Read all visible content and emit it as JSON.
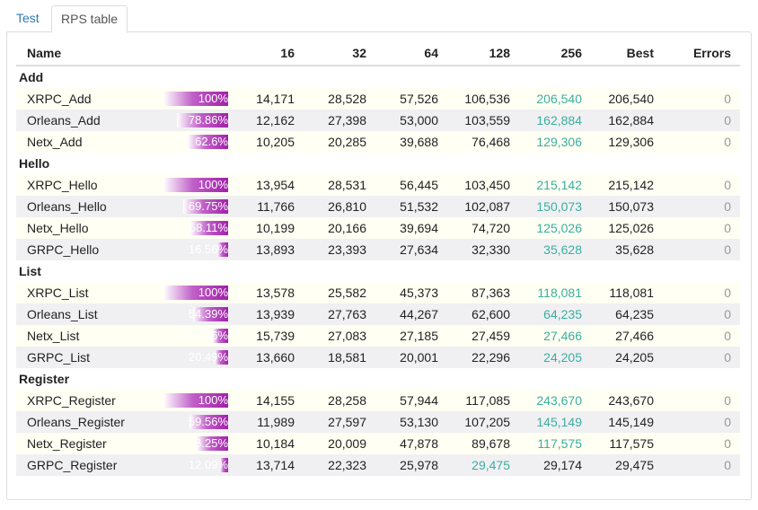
{
  "tabs": [
    {
      "label": "Test"
    },
    {
      "label": "RPS table"
    }
  ],
  "table": {
    "columns": [
      "Name",
      "",
      "16",
      "32",
      "64",
      "128",
      "256",
      "Best",
      "Errors"
    ],
    "groups": [
      {
        "label": "Add",
        "rows": [
          {
            "name": "XRPC_Add",
            "pct": "100%",
            "pct_value": 100,
            "v16": "14,171",
            "v32": "28,528",
            "v64": "57,526",
            "v128": "106,536",
            "v256": "206,540",
            "best": "206,540",
            "errors": "0",
            "best_col": "256"
          },
          {
            "name": "Orleans_Add",
            "pct": "78.86%",
            "pct_value": 78.86,
            "v16": "12,162",
            "v32": "27,398",
            "v64": "53,000",
            "v128": "103,559",
            "v256": "162,884",
            "best": "162,884",
            "errors": "0",
            "best_col": "256"
          },
          {
            "name": "Netx_Add",
            "pct": "62.6%",
            "pct_value": 62.6,
            "v16": "10,205",
            "v32": "20,285",
            "v64": "39,688",
            "v128": "76,468",
            "v256": "129,306",
            "best": "129,306",
            "errors": "0",
            "best_col": "256"
          }
        ]
      },
      {
        "label": "Hello",
        "rows": [
          {
            "name": "XRPC_Hello",
            "pct": "100%",
            "pct_value": 100,
            "v16": "13,954",
            "v32": "28,531",
            "v64": "56,445",
            "v128": "103,450",
            "v256": "215,142",
            "best": "215,142",
            "errors": "0",
            "best_col": "256"
          },
          {
            "name": "Orleans_Hello",
            "pct": "69.75%",
            "pct_value": 69.75,
            "v16": "11,766",
            "v32": "26,810",
            "v64": "51,532",
            "v128": "102,087",
            "v256": "150,073",
            "best": "150,073",
            "errors": "0",
            "best_col": "256"
          },
          {
            "name": "Netx_Hello",
            "pct": "58.11%",
            "pct_value": 58.11,
            "v16": "10,199",
            "v32": "20,166",
            "v64": "39,694",
            "v128": "74,720",
            "v256": "125,026",
            "best": "125,026",
            "errors": "0",
            "best_col": "256"
          },
          {
            "name": "GRPC_Hello",
            "pct": "16.56%",
            "pct_value": 16.56,
            "v16": "13,893",
            "v32": "23,393",
            "v64": "27,634",
            "v128": "32,330",
            "v256": "35,628",
            "best": "35,628",
            "errors": "0",
            "best_col": "256"
          }
        ]
      },
      {
        "label": "List",
        "rows": [
          {
            "name": "XRPC_List",
            "pct": "100%",
            "pct_value": 100,
            "v16": "13,578",
            "v32": "25,582",
            "v64": "45,373",
            "v128": "87,363",
            "v256": "118,081",
            "best": "118,081",
            "errors": "0",
            "best_col": "256"
          },
          {
            "name": "Orleans_List",
            "pct": "54.39%",
            "pct_value": 54.39,
            "v16": "13,939",
            "v32": "27,763",
            "v64": "44,267",
            "v128": "62,600",
            "v256": "64,235",
            "best": "64,235",
            "errors": "0",
            "best_col": "256"
          },
          {
            "name": "Netx_List",
            "pct": "23.26%",
            "pct_value": 23.26,
            "v16": "15,739",
            "v32": "27,083",
            "v64": "27,185",
            "v128": "27,459",
            "v256": "27,466",
            "best": "27,466",
            "errors": "0",
            "best_col": "256"
          },
          {
            "name": "GRPC_List",
            "pct": "20.49%",
            "pct_value": 20.49,
            "v16": "13,660",
            "v32": "18,581",
            "v64": "20,001",
            "v128": "22,296",
            "v256": "24,205",
            "best": "24,205",
            "errors": "0",
            "best_col": "256"
          }
        ]
      },
      {
        "label": "Register",
        "rows": [
          {
            "name": "XRPC_Register",
            "pct": "100%",
            "pct_value": 100,
            "v16": "14,155",
            "v32": "28,258",
            "v64": "57,944",
            "v128": "117,085",
            "v256": "243,670",
            "best": "243,670",
            "errors": "0",
            "best_col": "256"
          },
          {
            "name": "Orleans_Register",
            "pct": "59.56%",
            "pct_value": 59.56,
            "v16": "11,989",
            "v32": "27,597",
            "v64": "53,130",
            "v128": "107,205",
            "v256": "145,149",
            "best": "145,149",
            "errors": "0",
            "best_col": "256"
          },
          {
            "name": "Netx_Register",
            "pct": "48.25%",
            "pct_value": 48.25,
            "v16": "10,184",
            "v32": "20,009",
            "v64": "47,878",
            "v128": "89,678",
            "v256": "117,575",
            "best": "117,575",
            "errors": "0",
            "best_col": "256"
          },
          {
            "name": "GRPC_Register",
            "pct": "12.09%",
            "pct_value": 12.09,
            "v16": "13,714",
            "v32": "22,323",
            "v64": "25,978",
            "v128": "29,475",
            "v256": "29,174",
            "best": "29,475",
            "errors": "0",
            "best_col": "128"
          }
        ]
      }
    ]
  },
  "colors": {
    "highlight": "#3aaea0",
    "bar_start": "#ffffff",
    "bar_end": "#a020a8",
    "row_odd": "#fffff3",
    "row_even": "#f0f0f2"
  }
}
